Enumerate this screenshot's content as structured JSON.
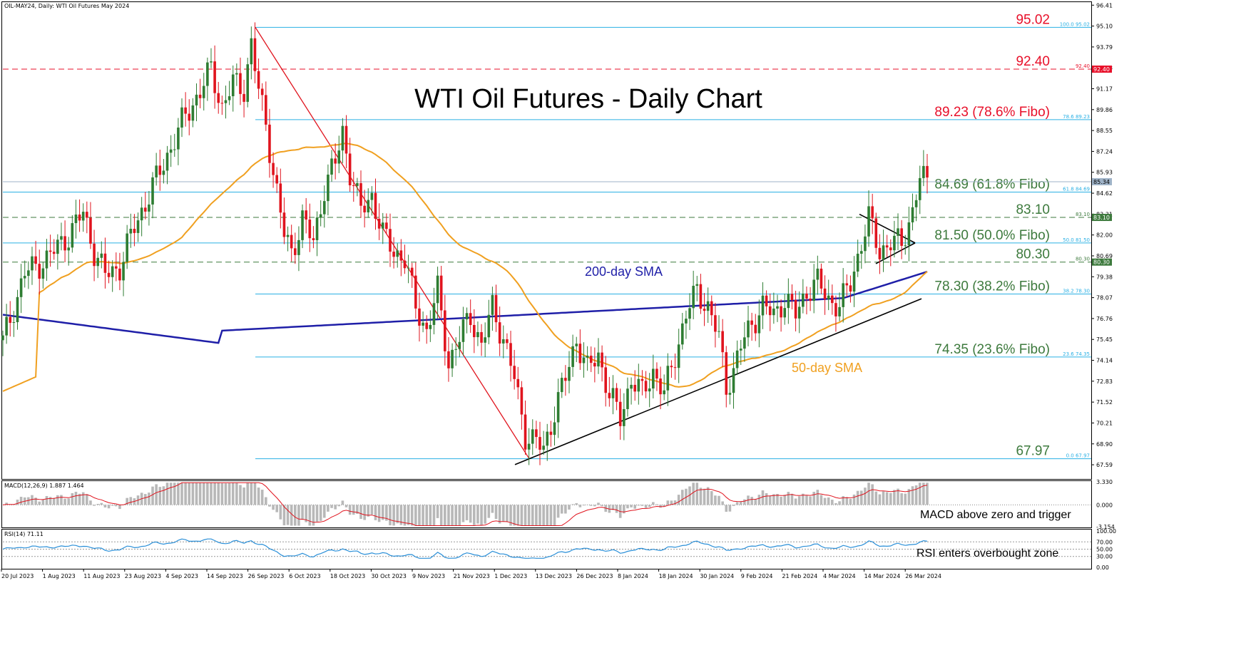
{
  "chart_data": {
    "type": "candlestick",
    "header": "OIL-MAY24, Daily:  WTI Oil Futures May 2024",
    "title": "WTI Oil Futures - Daily Chart",
    "ylim": [
      66.7,
      96.6
    ],
    "y_ticks": [
      "96.41",
      "95.10",
      "93.79",
      "92.48",
      "91.17",
      "89.86",
      "88.55",
      "87.24",
      "85.93",
      "84.62",
      "83.31",
      "82.00",
      "80.69",
      "79.38",
      "78.07",
      "76.76",
      "75.45",
      "74.14",
      "72.83",
      "71.52",
      "70.21",
      "68.90",
      "67.59"
    ],
    "x_labels": [
      "20 Jul 2023",
      "1 Aug 2023",
      "11 Aug 2023",
      "23 Aug 2023",
      "4 Sep 2023",
      "14 Sep 2023",
      "26 Sep 2023",
      "6 Oct 2023",
      "18 Oct 2023",
      "30 Oct 2023",
      "9 Nov 2023",
      "21 Nov 2023",
      "1 Dec 2023",
      "13 Dec 2023",
      "26 Dec 2023",
      "8 Jan 2024",
      "18 Jan 2024",
      "30 Jan 2024",
      "9 Feb 2024",
      "21 Feb 2024",
      "4 Mar 2024",
      "14 Mar 2024",
      "26 Mar 2024"
    ],
    "current_price": {
      "label": "85.34",
      "value": 85.34,
      "color": "#9fb3c8"
    },
    "levels": [
      {
        "value": 95.02,
        "label": "95.02",
        "color": "#e8102a",
        "line": "solid",
        "line_color": "#2ab0e4",
        "tag": "100.0 95.02"
      },
      {
        "value": 92.4,
        "label": "92.40",
        "color": "#e8102a",
        "line": "dashed",
        "line_color": "#e8102a",
        "tag": "92.40"
      },
      {
        "value": 89.23,
        "label": "89.23 (78.6% Fibo)",
        "color": "#e8102a",
        "line": "solid",
        "line_color": "#2ab0e4",
        "tag": "78.6 89.23"
      },
      {
        "value": 84.69,
        "label": "84.69 (61.8% Fibo)",
        "color": "#3d7a3d",
        "line": "solid",
        "line_color": "#2ab0e4",
        "tag": "61.8 84.69"
      },
      {
        "value": 83.1,
        "label": "83.10",
        "color": "#3d7a3d",
        "line": "dashed",
        "line_color": "#3d7a3d",
        "tag": "83.10"
      },
      {
        "value": 81.5,
        "label": "81.50 (50.0% Fibo)",
        "color": "#3d7a3d",
        "line": "solid",
        "line_color": "#2ab0e4",
        "tag": "50.0 81.50"
      },
      {
        "value": 80.3,
        "label": "80.30",
        "color": "#3d7a3d",
        "line": "dashed",
        "line_color": "#3d7a3d",
        "tag": "80.30"
      },
      {
        "value": 78.3,
        "label": "78.30 (38.2% Fibo)",
        "color": "#3d7a3d",
        "line": "solid",
        "line_color": "#2ab0e4",
        "tag": "38.2 78.30"
      },
      {
        "value": 74.35,
        "label": "74.35 (23.6% Fibo)",
        "color": "#3d7a3d",
        "line": "solid",
        "line_color": "#2ab0e4",
        "tag": "23.6 74.35"
      },
      {
        "value": 67.97,
        "label": "67.97",
        "color": "#3d7a3d",
        "line": "solid",
        "line_color": "#2ab0e4",
        "tag": "0.0 67.97"
      }
    ],
    "sma200_label": "200-day SMA",
    "sma50_label": "50-day SMA",
    "sma200_color": "#1f1fa8",
    "sma50_color": "#f0a020",
    "up_color": "#2e7d32",
    "down_color": "#e0141e",
    "macd": {
      "header": "MACD(12,26,9) 1.887 1.464",
      "ticks": [
        "3.330",
        "0.000",
        "-3.154"
      ],
      "note": "MACD above zero and trigger"
    },
    "rsi": {
      "header": "RSI(14) 71.11",
      "ticks": [
        "100.00",
        "70.00",
        "50.00",
        "30.00",
        "0.00"
      ],
      "note": "RSI enters overbought zone"
    }
  }
}
